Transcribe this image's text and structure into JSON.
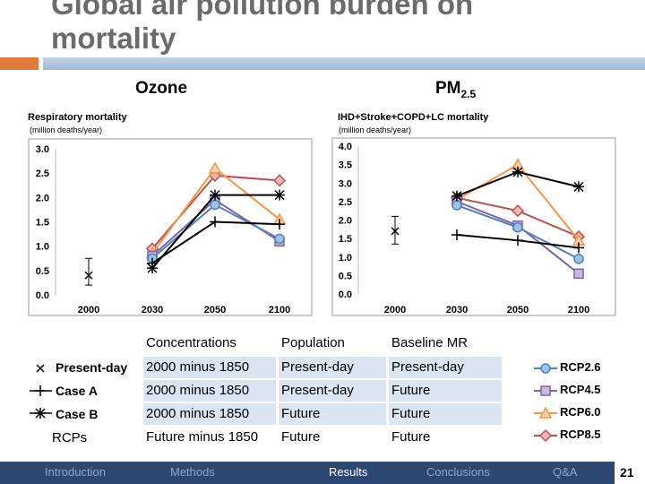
{
  "slide": {
    "title": "Global air pollution burden on mortality",
    "page_number": "21"
  },
  "chart_data": [
    {
      "type": "scatter-line",
      "title": "Ozone",
      "ylabel": "Respiratory mortality",
      "yunit": "(million deaths/year)",
      "categories": [
        "2000",
        "2030",
        "2050",
        "2100"
      ],
      "ylim": [
        0,
        3.0
      ],
      "yticks": [
        "0.0",
        "0.5",
        "1.0",
        "1.5",
        "2.0",
        "2.5",
        "3.0"
      ],
      "present_day": {
        "x": "2000",
        "value": 0.4,
        "err": [
          0.2,
          0.75
        ]
      },
      "series": [
        {
          "name": "Case A",
          "values": [
            null,
            0.65,
            1.5,
            1.45
          ]
        },
        {
          "name": "Case B",
          "values": [
            null,
            0.55,
            2.05,
            2.05
          ]
        },
        {
          "name": "RCP2.6",
          "values": [
            null,
            0.75,
            1.85,
            1.15
          ]
        },
        {
          "name": "RCP4.5",
          "values": [
            null,
            0.8,
            1.95,
            1.1
          ]
        },
        {
          "name": "RCP6.0",
          "values": [
            null,
            0.85,
            2.6,
            1.55
          ]
        },
        {
          "name": "RCP8.5",
          "values": [
            null,
            0.95,
            2.45,
            2.35
          ]
        }
      ]
    },
    {
      "type": "scatter-line",
      "title": "PM",
      "title_sub": "2.5",
      "ylabel": "IHD+Stroke+COPD+LC mortality",
      "yunit": "(million deaths/year)",
      "categories": [
        "2000",
        "2030",
        "2050",
        "2100"
      ],
      "ylim": [
        0,
        4.0
      ],
      "yticks": [
        "0.0",
        "0.5",
        "1.0",
        "1.5",
        "2.0",
        "2.5",
        "3.0",
        "3.5",
        "4.0"
      ],
      "present_day": {
        "x": "2000",
        "value": 1.7,
        "err": [
          1.35,
          2.1
        ]
      },
      "series": [
        {
          "name": "Case A",
          "values": [
            null,
            1.6,
            1.45,
            1.25
          ]
        },
        {
          "name": "Case B",
          "values": [
            null,
            2.65,
            3.3,
            2.9
          ]
        },
        {
          "name": "RCP2.6",
          "values": [
            null,
            2.4,
            1.8,
            0.95
          ]
        },
        {
          "name": "RCP4.5",
          "values": [
            null,
            2.5,
            1.85,
            0.55
          ]
        },
        {
          "name": "RCP6.0",
          "values": [
            null,
            2.55,
            3.5,
            1.45
          ]
        },
        {
          "name": "RCP8.5",
          "values": [
            null,
            2.6,
            2.25,
            1.55
          ]
        }
      ]
    }
  ],
  "colors": {
    "case": "#000000",
    "RCP2.6": "#4f81bd",
    "RCP4.5": "#8064a2",
    "RCP6.0": "#f79646",
    "RCP8.5": "#c0504d"
  },
  "table": {
    "headers": [
      "Concentrations",
      "Population",
      "Baseline MR"
    ],
    "rows": [
      {
        "label": "Present-day",
        "cells": [
          "2000 minus 1850",
          "Present-day",
          "Present-day"
        ]
      },
      {
        "label": "Case A",
        "cells": [
          "2000 minus 1850",
          "Present-day",
          "Future"
        ]
      },
      {
        "label": "Case B",
        "cells": [
          "2000 minus 1850",
          "Future",
          "Future"
        ]
      },
      {
        "label": "RCPs",
        "cells": [
          "Future minus 1850",
          "Future",
          "Future"
        ]
      }
    ]
  },
  "legend": [
    "RCP2.6",
    "RCP4.5",
    "RCP6.0",
    "RCP8.5"
  ],
  "nav": [
    "Introduction",
    "Methods",
    "Results",
    "Conclusions",
    "Q&A"
  ]
}
